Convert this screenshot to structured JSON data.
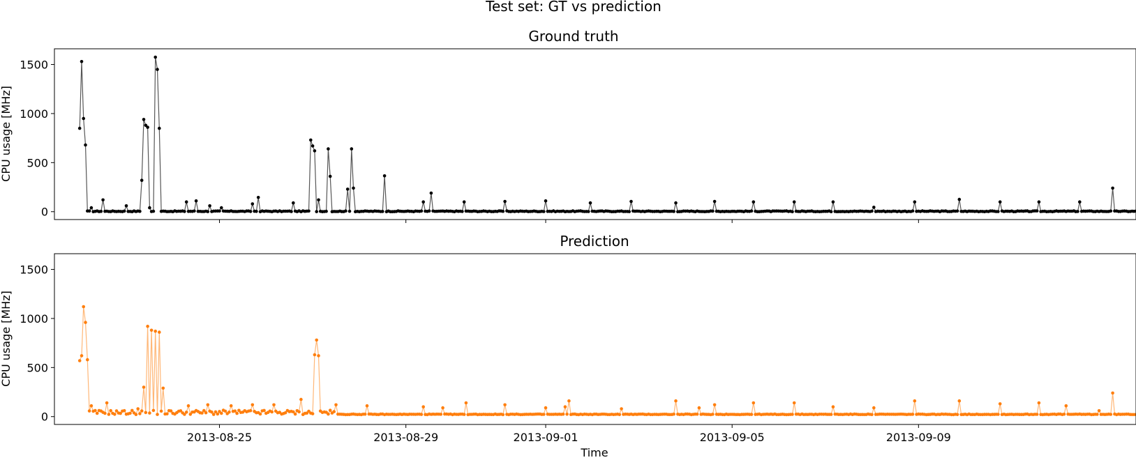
{
  "suptitle": "Test set: GT vs prediction",
  "xlabel": "Time",
  "x_tick_labels": [
    "2013-08-25",
    "2013-08-29",
    "2013-09-01",
    "2013-09-05",
    "2013-09-09"
  ],
  "y_tick_labels": [
    "0",
    "500",
    "1000",
    "1500"
  ],
  "chart_data": [
    {
      "type": "line",
      "title": "Ground truth",
      "ylabel": "CPU usage [MHz]",
      "color": "#000000",
      "marker": "dot",
      "x_range": [
        "2013-08-21T11:00",
        "2013-09-13T16:00"
      ],
      "ylim": [
        -80,
        1660
      ],
      "baseline_value": 0,
      "spikes": [
        {
          "x": "2013-08-22T00:00",
          "y": 850
        },
        {
          "x": "2013-08-22T01:00",
          "y": 1530
        },
        {
          "x": "2013-08-22T02:00",
          "y": 950
        },
        {
          "x": "2013-08-22T03:00",
          "y": 680
        },
        {
          "x": "2013-08-22T06:00",
          "y": 40
        },
        {
          "x": "2013-08-22T12:00",
          "y": 120
        },
        {
          "x": "2013-08-23T00:00",
          "y": 60
        },
        {
          "x": "2013-08-23T08:00",
          "y": 320
        },
        {
          "x": "2013-08-23T09:00",
          "y": 940
        },
        {
          "x": "2013-08-23T10:00",
          "y": 880
        },
        {
          "x": "2013-08-23T11:00",
          "y": 860
        },
        {
          "x": "2013-08-23T12:00",
          "y": 40
        },
        {
          "x": "2013-08-23T15:00",
          "y": 1575
        },
        {
          "x": "2013-08-23T16:00",
          "y": 1450
        },
        {
          "x": "2013-08-23T17:00",
          "y": 850
        },
        {
          "x": "2013-08-24T07:00",
          "y": 100
        },
        {
          "x": "2013-08-24T12:00",
          "y": 110
        },
        {
          "x": "2013-08-24T19:00",
          "y": 60
        },
        {
          "x": "2013-08-25T01:00",
          "y": 40
        },
        {
          "x": "2013-08-25T17:00",
          "y": 80
        },
        {
          "x": "2013-08-25T20:00",
          "y": 145
        },
        {
          "x": "2013-08-26T14:00",
          "y": 90
        },
        {
          "x": "2013-08-26T23:00",
          "y": 730
        },
        {
          "x": "2013-08-27T00:00",
          "y": 670
        },
        {
          "x": "2013-08-27T01:00",
          "y": 620
        },
        {
          "x": "2013-08-27T03:00",
          "y": 120
        },
        {
          "x": "2013-08-27T08:00",
          "y": 640
        },
        {
          "x": "2013-08-27T09:00",
          "y": 360
        },
        {
          "x": "2013-08-27T18:00",
          "y": 230
        },
        {
          "x": "2013-08-27T20:00",
          "y": 640
        },
        {
          "x": "2013-08-27T21:00",
          "y": 240
        },
        {
          "x": "2013-08-28T13:00",
          "y": 365
        },
        {
          "x": "2013-08-29T09:00",
          "y": 100
        },
        {
          "x": "2013-08-29T13:00",
          "y": 190
        },
        {
          "x": "2013-08-30T06:00",
          "y": 100
        },
        {
          "x": "2013-08-31T03:00",
          "y": 105
        },
        {
          "x": "2013-09-01T00:00",
          "y": 110
        },
        {
          "x": "2013-09-01T23:00",
          "y": 90
        },
        {
          "x": "2013-09-02T20:00",
          "y": 105
        },
        {
          "x": "2013-09-03T19:00",
          "y": 90
        },
        {
          "x": "2013-09-04T15:00",
          "y": 105
        },
        {
          "x": "2013-09-05T11:00",
          "y": 100
        },
        {
          "x": "2013-09-06T08:00",
          "y": 100
        },
        {
          "x": "2013-09-07T04:00",
          "y": 100
        },
        {
          "x": "2013-09-08T01:00",
          "y": 45
        },
        {
          "x": "2013-09-08T22:00",
          "y": 100
        },
        {
          "x": "2013-09-09T21:00",
          "y": 125
        },
        {
          "x": "2013-09-10T18:00",
          "y": 100
        },
        {
          "x": "2013-09-11T14:00",
          "y": 100
        },
        {
          "x": "2013-09-12T11:00",
          "y": 100
        },
        {
          "x": "2013-09-13T04:00",
          "y": 240
        }
      ]
    },
    {
      "type": "line",
      "title": "Prediction",
      "ylabel": "CPU usage [MHz]",
      "color": "#ff7f0e",
      "marker": "dot",
      "x_range": [
        "2013-08-21T11:00",
        "2013-09-13T16:00"
      ],
      "ylim": [
        -80,
        1660
      ],
      "baseline_value": 20,
      "spikes": [
        {
          "x": "2013-08-22T00:00",
          "y": 570
        },
        {
          "x": "2013-08-22T01:00",
          "y": 620
        },
        {
          "x": "2013-08-22T02:00",
          "y": 1120
        },
        {
          "x": "2013-08-22T03:00",
          "y": 960
        },
        {
          "x": "2013-08-22T04:00",
          "y": 580
        },
        {
          "x": "2013-08-22T06:00",
          "y": 110
        },
        {
          "x": "2013-08-22T14:00",
          "y": 140
        },
        {
          "x": "2013-08-23T06:00",
          "y": 80
        },
        {
          "x": "2013-08-23T09:00",
          "y": 300
        },
        {
          "x": "2013-08-23T11:00",
          "y": 920
        },
        {
          "x": "2013-08-23T13:00",
          "y": 880
        },
        {
          "x": "2013-08-23T15:00",
          "y": 870
        },
        {
          "x": "2013-08-23T17:00",
          "y": 860
        },
        {
          "x": "2013-08-23T19:00",
          "y": 290
        },
        {
          "x": "2013-08-24T08:00",
          "y": 110
        },
        {
          "x": "2013-08-24T18:00",
          "y": 120
        },
        {
          "x": "2013-08-25T06:00",
          "y": 110
        },
        {
          "x": "2013-08-25T17:00",
          "y": 120
        },
        {
          "x": "2013-08-26T04:00",
          "y": 120
        },
        {
          "x": "2013-08-26T18:00",
          "y": 175
        },
        {
          "x": "2013-08-27T01:00",
          "y": 630
        },
        {
          "x": "2013-08-27T02:00",
          "y": 780
        },
        {
          "x": "2013-08-27T03:00",
          "y": 620
        },
        {
          "x": "2013-08-27T12:00",
          "y": 120
        },
        {
          "x": "2013-08-28T04:00",
          "y": 110
        },
        {
          "x": "2013-08-29T09:00",
          "y": 100
        },
        {
          "x": "2013-08-29T19:00",
          "y": 90
        },
        {
          "x": "2013-08-30T07:00",
          "y": 140
        },
        {
          "x": "2013-08-31T03:00",
          "y": 120
        },
        {
          "x": "2013-09-01T00:00",
          "y": 90
        },
        {
          "x": "2013-09-01T10:00",
          "y": 100
        },
        {
          "x": "2013-09-01T12:00",
          "y": 160
        },
        {
          "x": "2013-09-02T15:00",
          "y": 80
        },
        {
          "x": "2013-09-03T19:00",
          "y": 160
        },
        {
          "x": "2013-09-04T07:00",
          "y": 90
        },
        {
          "x": "2013-09-04T15:00",
          "y": 120
        },
        {
          "x": "2013-09-05T11:00",
          "y": 140
        },
        {
          "x": "2013-09-06T08:00",
          "y": 140
        },
        {
          "x": "2013-09-07T04:00",
          "y": 100
        },
        {
          "x": "2013-09-08T01:00",
          "y": 90
        },
        {
          "x": "2013-09-08T22:00",
          "y": 160
        },
        {
          "x": "2013-09-09T21:00",
          "y": 160
        },
        {
          "x": "2013-09-10T18:00",
          "y": 130
        },
        {
          "x": "2013-09-11T14:00",
          "y": 140
        },
        {
          "x": "2013-09-12T04:00",
          "y": 110
        },
        {
          "x": "2013-09-12T21:00",
          "y": 60
        },
        {
          "x": "2013-09-13T04:00",
          "y": 240
        }
      ]
    }
  ]
}
